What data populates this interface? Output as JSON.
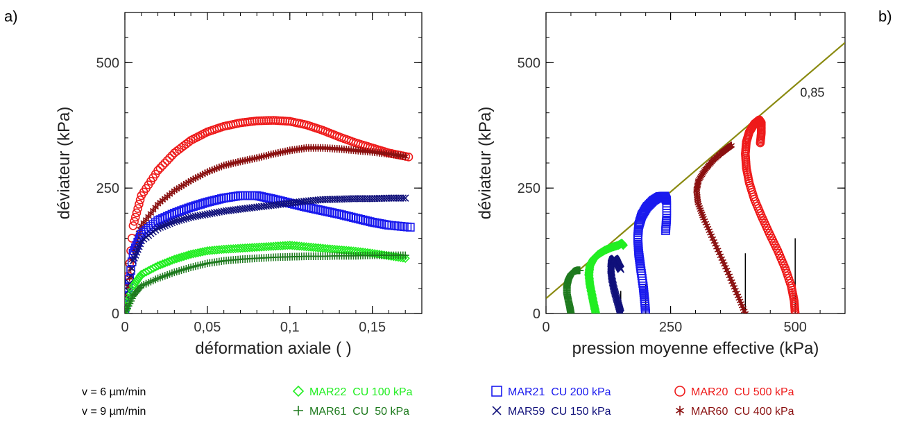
{
  "panel_labels": {
    "left": "a)",
    "right": "b)"
  },
  "colors": {
    "MAR22": "#22ee22",
    "MAR61": "#1e7a1e",
    "MAR21": "#1a1aee",
    "MAR59": "#10107a",
    "MAR20": "#ee1a1a",
    "MAR60": "#8a1010",
    "critical_line": "#8a8a10",
    "axis": "#000000"
  },
  "legend": {
    "speed_rows": [
      "v = 6 µm/min",
      "v = 9 µm/min"
    ],
    "entries": [
      {
        "key": "MAR22",
        "symbol": "diamond",
        "row": 0,
        "col": 0,
        "label": "MAR22  CU 100 kPa"
      },
      {
        "key": "MAR61",
        "symbol": "plus",
        "row": 1,
        "col": 0,
        "label": "MAR61  CU  50 kPa"
      },
      {
        "key": "MAR21",
        "symbol": "square",
        "row": 0,
        "col": 1,
        "label": "MAR21  CU 200 kPa"
      },
      {
        "key": "MAR59",
        "symbol": "cross",
        "row": 1,
        "col": 1,
        "label": "MAR59  CU 150 kPa"
      },
      {
        "key": "MAR20",
        "symbol": "circle",
        "row": 0,
        "col": 2,
        "label": "MAR20  CU 500 kPa"
      },
      {
        "key": "MAR60",
        "symbol": "star",
        "row": 1,
        "col": 2,
        "label": "MAR60  CU 400 kPa"
      }
    ]
  },
  "chart_data": [
    {
      "type": "scatter",
      "title": "",
      "xlabel": "déformation axiale ( )",
      "ylabel": "déviateur (kPa)",
      "xlim": [
        0,
        0.18
      ],
      "ylim": [
        0,
        600
      ],
      "x_ticks": [
        0,
        0.05,
        0.1,
        0.15
      ],
      "x_tick_labels": [
        "0",
        "0,05",
        "0,1",
        "0,15"
      ],
      "y_ticks": [
        0,
        250,
        500
      ],
      "y_tick_labels": [
        "0",
        "250",
        "500"
      ],
      "grid": false,
      "series": [
        {
          "name": "MAR20  CU 500 kPa",
          "key": "MAR20",
          "symbol": "circle",
          "x": [
            0,
            0.005,
            0.01,
            0.02,
            0.03,
            0.04,
            0.05,
            0.06,
            0.07,
            0.08,
            0.09,
            0.1,
            0.11,
            0.12,
            0.13,
            0.14,
            0.15,
            0.16,
            0.172
          ],
          "y": [
            0,
            175,
            235,
            285,
            320,
            345,
            362,
            373,
            380,
            384,
            385,
            383,
            376,
            365,
            352,
            340,
            330,
            320,
            312
          ]
        },
        {
          "name": "MAR60  CU 400 kPa",
          "key": "MAR60",
          "symbol": "star",
          "x": [
            0,
            0.005,
            0.01,
            0.02,
            0.03,
            0.04,
            0.05,
            0.06,
            0.07,
            0.08,
            0.09,
            0.1,
            0.11,
            0.12,
            0.13,
            0.14,
            0.15,
            0.16,
            0.17
          ],
          "y": [
            0,
            125,
            175,
            218,
            245,
            265,
            282,
            295,
            303,
            310,
            318,
            325,
            330,
            330,
            328,
            325,
            322,
            318,
            313
          ]
        },
        {
          "name": "MAR21  CU 200 kPa",
          "key": "MAR21",
          "symbol": "square",
          "x": [
            0,
            0.005,
            0.01,
            0.02,
            0.03,
            0.04,
            0.05,
            0.06,
            0.07,
            0.08,
            0.09,
            0.1,
            0.11,
            0.12,
            0.13,
            0.14,
            0.15,
            0.16,
            0.173
          ],
          "y": [
            0,
            120,
            158,
            185,
            200,
            212,
            222,
            230,
            235,
            235,
            228,
            220,
            212,
            205,
            198,
            190,
            182,
            176,
            172
          ]
        },
        {
          "name": "MAR59  CU 150 kPa",
          "key": "MAR59",
          "symbol": "cross",
          "x": [
            0,
            0.005,
            0.01,
            0.02,
            0.03,
            0.04,
            0.05,
            0.06,
            0.07,
            0.08,
            0.09,
            0.1,
            0.11,
            0.12,
            0.13,
            0.14,
            0.15,
            0.16,
            0.17
          ],
          "y": [
            0,
            105,
            145,
            170,
            183,
            192,
            198,
            204,
            208,
            212,
            216,
            220,
            224,
            227,
            228,
            229,
            229,
            230,
            230
          ]
        },
        {
          "name": "MAR22  CU 100 kPa",
          "key": "MAR22",
          "symbol": "diamond",
          "x": [
            0,
            0.005,
            0.01,
            0.02,
            0.03,
            0.04,
            0.05,
            0.06,
            0.07,
            0.08,
            0.09,
            0.1,
            0.11,
            0.12,
            0.13,
            0.14,
            0.15,
            0.16,
            0.17
          ],
          "y": [
            0,
            55,
            78,
            95,
            108,
            118,
            125,
            128,
            130,
            132,
            134,
            136,
            133,
            130,
            127,
            124,
            120,
            115,
            110
          ]
        },
        {
          "name": "MAR61  CU  50 kPa",
          "key": "MAR61",
          "symbol": "plus",
          "x": [
            0,
            0.005,
            0.01,
            0.02,
            0.03,
            0.04,
            0.05,
            0.06,
            0.07,
            0.08,
            0.09,
            0.1,
            0.11,
            0.12,
            0.13,
            0.14,
            0.15,
            0.16,
            0.17
          ],
          "y": [
            0,
            35,
            55,
            70,
            82,
            92,
            100,
            105,
            108,
            110,
            112,
            113,
            114,
            114,
            115,
            115,
            116,
            116,
            116
          ]
        }
      ]
    },
    {
      "type": "scatter",
      "title": "",
      "xlabel": "pression moyenne effective (kPa)",
      "ylabel": "déviateur (kPa)",
      "xlim": [
        0,
        600
      ],
      "ylim": [
        0,
        600
      ],
      "x_ticks": [
        0,
        250,
        500
      ],
      "x_tick_labels": [
        "0",
        "250",
        "500"
      ],
      "y_ticks": [
        0,
        250,
        500
      ],
      "y_tick_labels": [
        "0",
        "250",
        "500"
      ],
      "grid": false,
      "critical_line": {
        "x": [
          0,
          600
        ],
        "y": [
          30,
          540
        ],
        "label": "0,85"
      },
      "vertical_markers": [
        {
          "x": 100,
          "y_top": 25
        },
        {
          "x": 150,
          "y_top": 45
        },
        {
          "x": 200,
          "y_top": 60
        },
        {
          "x": 400,
          "y_top": 120
        },
        {
          "x": 500,
          "y_top": 150
        }
      ],
      "series": [
        {
          "name": "MAR20  CU 500 kPa",
          "key": "MAR20",
          "symbol": "circle",
          "x": [
            500,
            498,
            492,
            480,
            465,
            448,
            432,
            418,
            408,
            402,
            400,
            402,
            408,
            418,
            428,
            432,
            432,
            430
          ],
          "y": [
            0,
            25,
            55,
            90,
            125,
            160,
            195,
            228,
            260,
            290,
            318,
            342,
            362,
            378,
            386,
            380,
            360,
            340
          ]
        },
        {
          "name": "MAR60  CU 400 kPa",
          "key": "MAR60",
          "symbol": "star",
          "x": [
            400,
            385,
            368,
            350,
            332,
            316,
            305,
            302,
            306,
            318,
            335,
            352,
            365,
            372
          ],
          "y": [
            0,
            35,
            75,
            115,
            155,
            190,
            220,
            245,
            265,
            285,
            305,
            320,
            330,
            335
          ]
        },
        {
          "name": "MAR21  CU 200 kPa",
          "key": "MAR21",
          "symbol": "square",
          "x": [
            200,
            198,
            195,
            190,
            186,
            184,
            186,
            192,
            202,
            215,
            228,
            238,
            242,
            242,
            240
          ],
          "y": [
            0,
            25,
            55,
            90,
            120,
            150,
            175,
            195,
            212,
            225,
            233,
            234,
            225,
            190,
            165
          ]
        },
        {
          "name": "MAR59  CU 150 kPa",
          "key": "MAR59",
          "symbol": "cross",
          "x": [
            150,
            146,
            141,
            136,
            132,
            130,
            131,
            134,
            138,
            142,
            146,
            150
          ],
          "y": [
            0,
            15,
            32,
            50,
            70,
            88,
            100,
            108,
            110,
            104,
            95,
            88
          ]
        },
        {
          "name": "MAR22  CU 100 kPa",
          "key": "MAR22",
          "symbol": "diamond",
          "x": [
            100,
            96,
            92,
            88,
            86,
            88,
            95,
            105,
            118,
            132,
            145,
            152,
            155
          ],
          "y": [
            0,
            18,
            38,
            58,
            78,
            95,
            108,
            118,
            126,
            132,
            136,
            140,
            136
          ]
        },
        {
          "name": "MAR61  CU  50 kPa",
          "key": "MAR61",
          "symbol": "plus",
          "x": [
            50,
            48,
            45,
            42,
            42,
            45,
            50,
            56,
            62,
            68
          ],
          "y": [
            0,
            12,
            25,
            40,
            55,
            68,
            78,
            84,
            86,
            86
          ]
        }
      ]
    }
  ]
}
